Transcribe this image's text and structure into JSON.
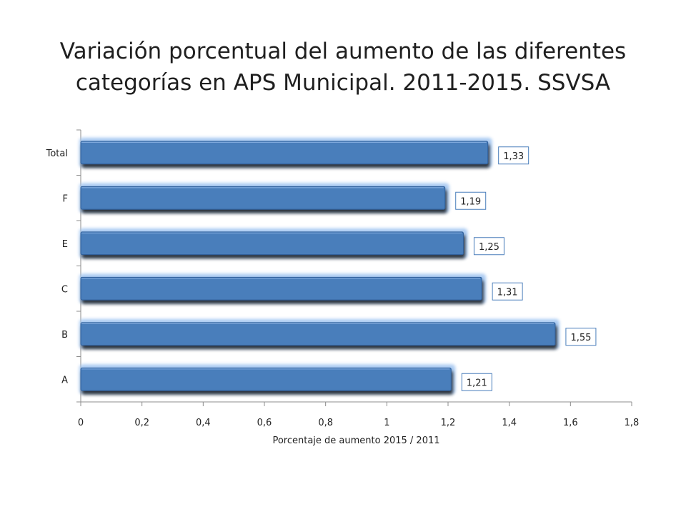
{
  "slide": {
    "title_line1": "Variación porcentual del aumento de las diferentes",
    "title_line2": "categorías en APS Municipal.  2011-2015. SSVSA"
  },
  "chart_data": {
    "type": "bar",
    "orientation": "horizontal",
    "categories": [
      "Total",
      "F",
      "E",
      "C",
      "B",
      "A"
    ],
    "values": [
      1.33,
      1.19,
      1.25,
      1.31,
      1.55,
      1.21
    ],
    "data_labels": [
      "1,33",
      "1,19",
      "1,25",
      "1,31",
      "1,55",
      "1,21"
    ],
    "xlabel": "Porcentaje de aumento 2015 / 2011",
    "ylabel": "",
    "xlim": [
      0,
      1.8
    ],
    "x_ticks": [
      0,
      0.2,
      0.4,
      0.6,
      0.8,
      1,
      1.2,
      1.4,
      1.6,
      1.8
    ],
    "x_tick_labels": [
      "0",
      "0,2",
      "0,4",
      "0,6",
      "0,8",
      "1",
      "1,2",
      "1,4",
      "1,6",
      "1,8"
    ],
    "grid": false,
    "legend": "none",
    "colors": {
      "bar_fill": "#4a7ebb",
      "bar_glow": "#9ec3f0",
      "bar_edge": "#2f5f9a",
      "axis": "#8c8c8c",
      "label_border": "#4a7ebb"
    }
  }
}
